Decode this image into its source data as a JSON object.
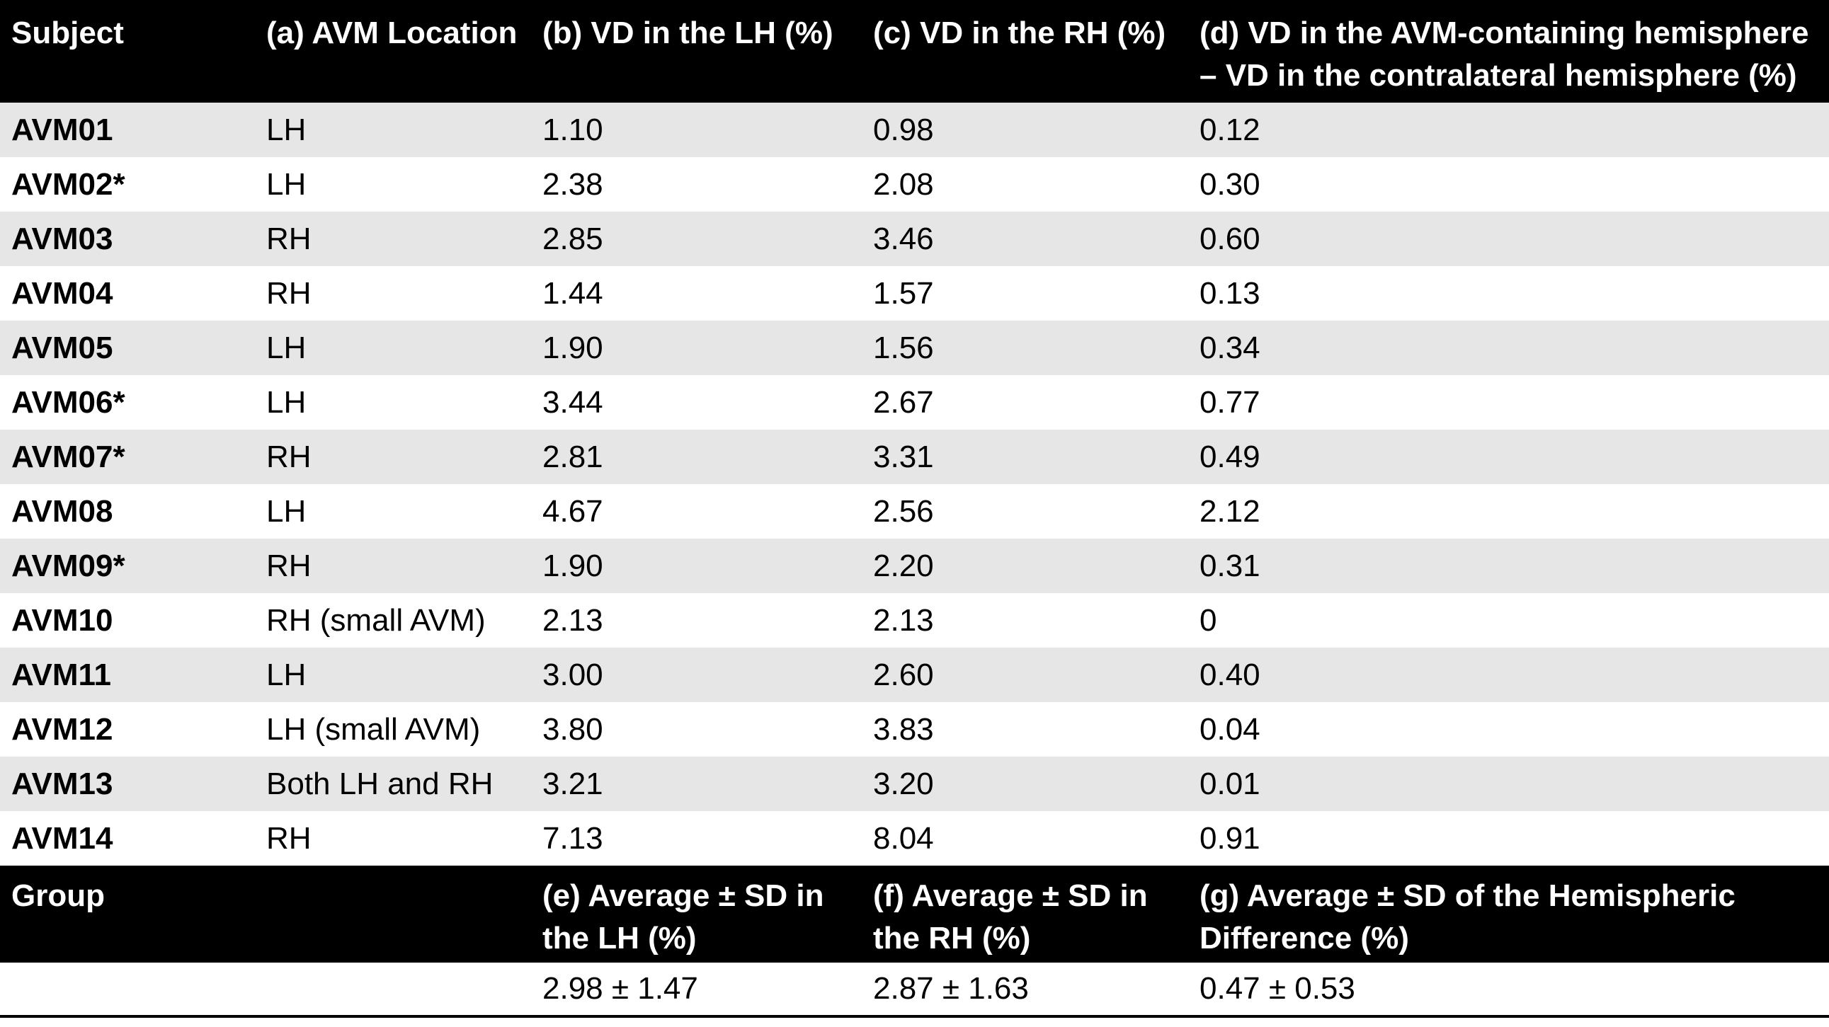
{
  "headers": {
    "subject": "Subject",
    "location": "(a) AVM Location",
    "vd_lh": "(b) VD in the LH (%)",
    "vd_rh": "(c) VD in the RH (%)",
    "vd_diff": "(d) VD in the AVM-containing hemisphere – VD in the contralateral hemisphere (%)"
  },
  "rows": [
    {
      "subject": "AVM01",
      "location": "LH",
      "lh": "1.10",
      "rh": "0.98",
      "diff": "0.12"
    },
    {
      "subject": "AVM02*",
      "location": "LH",
      "lh": "2.38",
      "rh": "2.08",
      "diff": "0.30"
    },
    {
      "subject": "AVM03",
      "location": "RH",
      "lh": "2.85",
      "rh": "3.46",
      "diff": "0.60"
    },
    {
      "subject": "AVM04",
      "location": "RH",
      "lh": "1.44",
      "rh": "1.57",
      "diff": "0.13"
    },
    {
      "subject": "AVM05",
      "location": "LH",
      "lh": "1.90",
      "rh": "1.56",
      "diff": "0.34"
    },
    {
      "subject": "AVM06*",
      "location": "LH",
      "lh": "3.44",
      "rh": "2.67",
      "diff": "0.77"
    },
    {
      "subject": "AVM07*",
      "location": "RH",
      "lh": "2.81",
      "rh": "3.31",
      "diff": "0.49"
    },
    {
      "subject": "AVM08",
      "location": "LH",
      "lh": "4.67",
      "rh": "2.56",
      "diff": "2.12"
    },
    {
      "subject": "AVM09*",
      "location": "RH",
      "lh": "1.90",
      "rh": "2.20",
      "diff": "0.31"
    },
    {
      "subject": "AVM10",
      "location": "RH (small AVM)",
      "lh": "2.13",
      "rh": "2.13",
      "diff": "0"
    },
    {
      "subject": "AVM11",
      "location": "LH",
      "lh": "3.00",
      "rh": "2.60",
      "diff": "0.40"
    },
    {
      "subject": "AVM12",
      "location": "LH (small AVM)",
      "lh": "3.80",
      "rh": "3.83",
      "diff": "0.04"
    },
    {
      "subject": "AVM13",
      "location": "Both LH and RH",
      "lh": "3.21",
      "rh": "3.20",
      "diff": "0.01"
    },
    {
      "subject": "AVM14",
      "location": "RH",
      "lh": "7.13",
      "rh": "8.04",
      "diff": "0.91"
    }
  ],
  "group": {
    "label": "Group",
    "avg_lh_label": "(e) Average ± SD in the LH (%)",
    "avg_rh_label": "(f) Average ± SD in the RH (%)",
    "avg_diff_label": "(g) Average ± SD of the Hemispheric Difference (%)",
    "avg_lh": "2.98 ± 1.47",
    "avg_rh": "2.87 ± 1.63",
    "avg_diff": "0.47 ± 0.53"
  }
}
